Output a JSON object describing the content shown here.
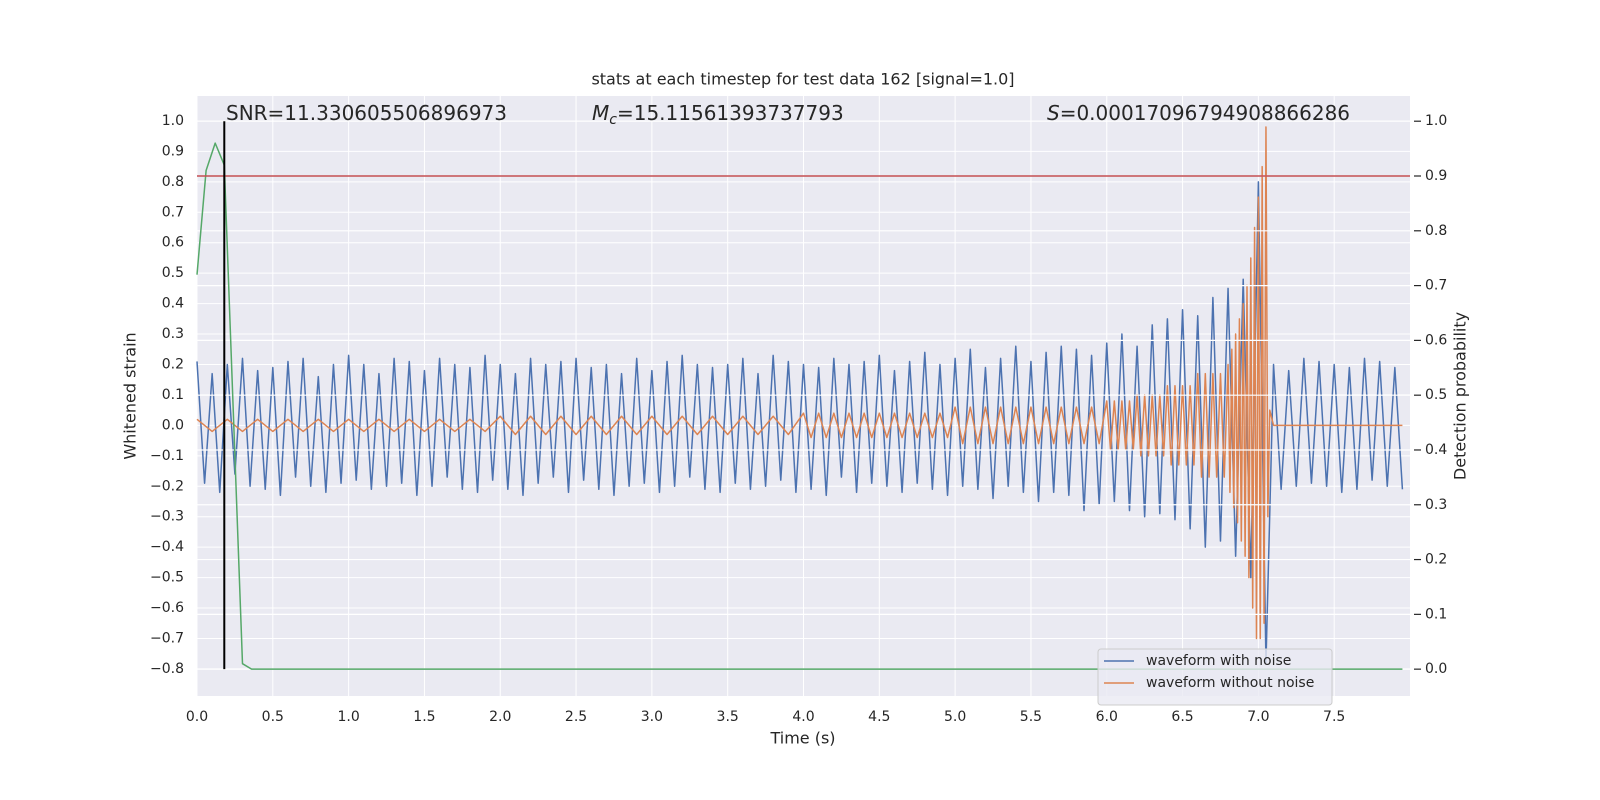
{
  "chart_data": {
    "type": "line",
    "title": "stats at each timestep for test data 162 [signal=1.0]",
    "xlabel": "Time (s)",
    "ylabel": "Whitened strain",
    "y2label": "Detection probability",
    "xlim": [
      0,
      8
    ],
    "ylim": [
      -0.889,
      1.082
    ],
    "y2lim": [
      -0.049,
      1.046
    ],
    "xticks": [
      {
        "value": 0,
        "label": "0.0"
      },
      0.5,
      {
        "value": 1,
        "label": "1.0"
      },
      1.5,
      {
        "value": 2,
        "label": "2.0"
      },
      2.5,
      {
        "value": 3,
        "label": "3.0"
      },
      3.5,
      {
        "value": 4,
        "label": "4.0"
      },
      4.5,
      {
        "value": 5,
        "label": "5.0"
      },
      5.5,
      {
        "value": 6,
        "label": "6.0"
      },
      6.5,
      {
        "value": 7,
        "label": "7.0"
      },
      7.5
    ],
    "yticks": [
      {
        "value": -0.8,
        "label": "−0.8"
      },
      {
        "value": -0.7,
        "label": "−0.7"
      },
      {
        "value": -0.6,
        "label": "−0.6"
      },
      {
        "value": -0.5,
        "label": "−0.5"
      },
      {
        "value": -0.4,
        "label": "−0.4"
      },
      {
        "value": -0.3,
        "label": "−0.3"
      },
      {
        "value": -0.2,
        "label": "−0.2"
      },
      {
        "value": -0.1,
        "label": "−0.1"
      },
      {
        "value": 0,
        "label": "0.0"
      },
      0.1,
      0.2,
      0.3,
      0.4,
      0.5,
      0.6,
      0.7,
      0.8,
      0.9,
      {
        "value": 1,
        "label": "1.0"
      }
    ],
    "y2ticks": [
      {
        "value": 0,
        "label": "0.0"
      },
      0.1,
      0.2,
      0.3,
      0.4,
      0.5,
      0.6,
      0.7,
      0.8,
      0.9,
      {
        "value": 1,
        "label": "1.0"
      }
    ],
    "grid": true,
    "legend": "lower right",
    "series": [
      {
        "name": "waveform with noise",
        "color": "#4c72b0",
        "x": [
          0,
          0.05,
          0.1,
          0.15,
          0.2,
          0.25,
          0.3,
          0.35,
          0.4,
          0.45,
          0.5,
          0.55,
          0.6,
          0.65,
          0.7,
          0.75,
          0.8,
          0.85,
          0.9,
          0.95,
          1,
          1.05,
          1.1,
          1.15,
          1.2,
          1.25,
          1.3,
          1.35,
          1.4,
          1.45,
          1.5,
          1.55,
          1.6,
          1.65,
          1.7,
          1.75,
          1.8,
          1.85,
          1.9,
          1.95,
          2,
          2.05,
          2.1,
          2.15,
          2.2,
          2.25,
          2.3,
          2.35,
          2.4,
          2.45,
          2.5,
          2.55,
          2.6,
          2.65,
          2.7,
          2.75,
          2.8,
          2.85,
          2.9,
          2.95,
          3,
          3.05,
          3.1,
          3.15,
          3.2,
          3.25,
          3.3,
          3.35,
          3.4,
          3.45,
          3.5,
          3.55,
          3.6,
          3.65,
          3.7,
          3.75,
          3.8,
          3.85,
          3.9,
          3.95,
          4,
          4.05,
          4.1,
          4.15,
          4.2,
          4.25,
          4.3,
          4.35,
          4.4,
          4.45,
          4.5,
          4.55,
          4.6,
          4.65,
          4.7,
          4.75,
          4.8,
          4.85,
          4.9,
          4.95,
          5,
          5.05,
          5.1,
          5.15,
          5.2,
          5.25,
          5.3,
          5.35,
          5.4,
          5.45,
          5.5,
          5.55,
          5.6,
          5.65,
          5.7,
          5.75,
          5.8,
          5.85,
          5.9,
          5.95,
          6,
          6.05,
          6.1,
          6.15,
          6.2,
          6.25,
          6.3,
          6.35,
          6.4,
          6.45,
          6.5,
          6.55,
          6.6,
          6.65,
          6.7,
          6.75,
          6.8,
          6.85,
          6.9,
          6.95,
          7,
          7.05,
          7.1,
          7.15,
          7.2,
          7.25,
          7.3,
          7.35,
          7.4,
          7.45,
          7.5,
          7.55,
          7.6,
          7.65,
          7.7,
          7.75,
          7.8,
          7.85,
          7.9,
          7.95
        ],
        "values": [
          0.21,
          -0.19,
          0.17,
          -0.22,
          0.2,
          -0.16,
          0.22,
          -0.2,
          0.18,
          -0.21,
          0.19,
          -0.23,
          0.21,
          -0.17,
          0.22,
          -0.2,
          0.16,
          -0.22,
          0.2,
          -0.19,
          0.23,
          -0.18,
          0.2,
          -0.21,
          0.17,
          -0.2,
          0.22,
          -0.19,
          0.21,
          -0.23,
          0.18,
          -0.2,
          0.22,
          -0.17,
          0.2,
          -0.21,
          0.19,
          -0.22,
          0.23,
          -0.18,
          0.2,
          -0.21,
          0.17,
          -0.23,
          0.22,
          -0.19,
          0.2,
          -0.17,
          0.21,
          -0.22,
          0.22,
          -0.18,
          0.19,
          -0.21,
          0.2,
          -0.23,
          0.17,
          -0.2,
          0.22,
          -0.19,
          0.18,
          -0.22,
          0.21,
          -0.2,
          0.23,
          -0.17,
          0.2,
          -0.21,
          0.19,
          -0.22,
          0.2,
          -0.19,
          0.22,
          -0.21,
          0.17,
          -0.2,
          0.23,
          -0.18,
          0.21,
          -0.22,
          0.2,
          -0.21,
          0.19,
          -0.23,
          0.22,
          -0.17,
          0.2,
          -0.22,
          0.21,
          -0.19,
          0.23,
          -0.2,
          0.18,
          -0.22,
          0.21,
          -0.19,
          0.24,
          -0.21,
          0.2,
          -0.23,
          0.22,
          -0.2,
          0.25,
          -0.21,
          0.19,
          -0.24,
          0.22,
          -0.2,
          0.26,
          -0.22,
          0.21,
          -0.25,
          0.24,
          -0.22,
          0.26,
          -0.23,
          0.25,
          -0.28,
          0.23,
          -0.26,
          0.27,
          -0.25,
          0.3,
          -0.28,
          0.26,
          -0.3,
          0.33,
          -0.29,
          0.35,
          -0.31,
          0.38,
          -0.34,
          0.36,
          -0.4,
          0.42,
          -0.38,
          0.45,
          -0.43,
          0.48,
          -0.5,
          0.8,
          -0.78,
          0.2,
          -0.21,
          0.18,
          -0.2,
          0.22,
          -0.19,
          0.21,
          -0.2,
          0.2,
          -0.22,
          0.19,
          -0.21,
          0.22,
          -0.18,
          0.21,
          -0.2,
          0.19,
          -0.21
        ]
      },
      {
        "name": "waveform without noise",
        "color": "#dd8452",
        "x": [
          0,
          0.1,
          0.2,
          0.3,
          0.4,
          0.5,
          0.6,
          0.7,
          0.8,
          0.9,
          1,
          1.1,
          1.2,
          1.3,
          1.4,
          1.5,
          1.6,
          1.7,
          1.8,
          1.9,
          2,
          2.1,
          2.2,
          2.3,
          2.4,
          2.5,
          2.6,
          2.7,
          2.8,
          2.9,
          3,
          3.1,
          3.2,
          3.3,
          3.4,
          3.5,
          3.6,
          3.7,
          3.8,
          3.9,
          4,
          4.05,
          4.1,
          4.15,
          4.2,
          4.25,
          4.3,
          4.35,
          4.4,
          4.45,
          4.5,
          4.55,
          4.6,
          4.65,
          4.7,
          4.75,
          4.8,
          4.85,
          4.9,
          4.95,
          5,
          5.05,
          5.1,
          5.15,
          5.2,
          5.25,
          5.3,
          5.35,
          5.4,
          5.45,
          5.5,
          5.55,
          5.6,
          5.65,
          5.7,
          5.75,
          5.8,
          5.85,
          5.9,
          5.95,
          6,
          6.025,
          6.05,
          6.075,
          6.1,
          6.125,
          6.15,
          6.175,
          6.2,
          6.225,
          6.25,
          6.275,
          6.3,
          6.325,
          6.35,
          6.375,
          6.4,
          6.425,
          6.45,
          6.475,
          6.5,
          6.525,
          6.55,
          6.575,
          6.6,
          6.625,
          6.65,
          6.675,
          6.7,
          6.725,
          6.75,
          6.775,
          6.8,
          6.8125,
          6.825,
          6.8375,
          6.85,
          6.8625,
          6.875,
          6.8875,
          6.9,
          6.9125,
          6.925,
          6.9375,
          6.95,
          6.9625,
          6.975,
          6.9875,
          7,
          7.0125,
          7.025,
          7.0375,
          7.05,
          7.0625,
          7.075,
          7.1,
          7.95
        ],
        "values": [
          0.02,
          -0.02,
          0.02,
          -0.02,
          0.02,
          -0.02,
          0.02,
          -0.02,
          0.02,
          -0.02,
          0.02,
          -0.02,
          0.02,
          -0.02,
          0.02,
          -0.02,
          0.02,
          -0.02,
          0.02,
          -0.02,
          0.03,
          -0.03,
          0.03,
          -0.03,
          0.03,
          -0.03,
          0.03,
          -0.03,
          0.03,
          -0.03,
          0.03,
          -0.03,
          0.03,
          -0.03,
          0.03,
          -0.03,
          0.03,
          -0.03,
          0.03,
          -0.03,
          0.04,
          -0.04,
          0.04,
          -0.04,
          0.04,
          -0.04,
          0.04,
          -0.04,
          0.04,
          -0.04,
          0.04,
          -0.04,
          0.04,
          -0.04,
          0.04,
          -0.04,
          0.04,
          -0.04,
          0.04,
          -0.04,
          0.06,
          -0.06,
          0.06,
          -0.06,
          0.06,
          -0.06,
          0.06,
          -0.06,
          0.06,
          -0.06,
          0.06,
          -0.06,
          0.06,
          -0.06,
          0.06,
          -0.06,
          0.06,
          -0.06,
          0.06,
          -0.06,
          0.08,
          -0.08,
          0.08,
          -0.08,
          0.08,
          -0.08,
          0.08,
          -0.08,
          0.1,
          -0.1,
          0.1,
          -0.1,
          0.1,
          -0.1,
          0.1,
          -0.1,
          0.13,
          -0.13,
          0.13,
          -0.13,
          0.13,
          -0.13,
          0.13,
          -0.13,
          0.17,
          -0.17,
          0.17,
          -0.17,
          0.17,
          -0.17,
          0.17,
          -0.17,
          0.2,
          -0.22,
          0.25,
          -0.27,
          0.3,
          -0.32,
          0.35,
          -0.38,
          0.4,
          -0.43,
          0.46,
          -0.5,
          0.55,
          -0.6,
          0.65,
          -0.7,
          0.75,
          -0.7,
          0.85,
          -0.65,
          0.98,
          -0.3,
          0.05,
          0,
          0
        ]
      },
      {
        "color": "#55a868",
        "axis": "y2",
        "x": [
          0,
          0.06,
          0.12,
          0.18,
          0.3,
          0.36,
          7.95
        ],
        "values": [
          0.72,
          0.91,
          0.96,
          0.92,
          0.01,
          0,
          0
        ]
      }
    ],
    "hlines": [
      {
        "y": 0.9,
        "axis": "y2",
        "color": "#c44e52"
      }
    ],
    "vlines": [
      {
        "x": 0.18,
        "ymin": 0,
        "ymax": 1,
        "axis": "y2",
        "color": "#000000"
      }
    ],
    "annotations": [
      {
        "text": "SNR=11.330605506896973"
      },
      {
        "symbol": "M",
        "subscript": "c",
        "text": "=15.11561393737793"
      },
      {
        "symbol": "S",
        "text": "=0.00017096794908866286"
      }
    ]
  }
}
